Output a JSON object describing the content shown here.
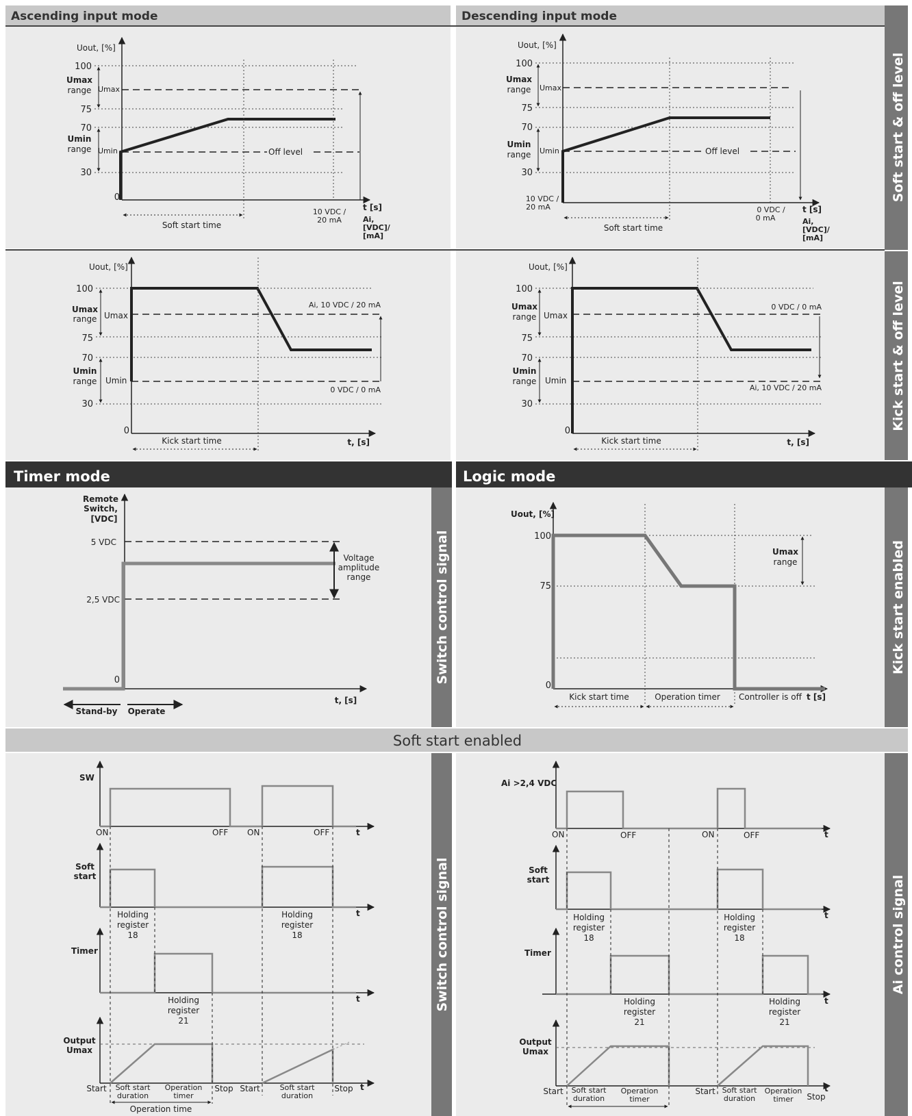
{
  "headers": {
    "ascending": "Ascending input mode",
    "descending": "Descending input mode",
    "timer": "Timer mode",
    "logic": "Logic mode",
    "soft_enabled": "Soft start enabled"
  },
  "side_labels": {
    "soft_off": "Soft start & off level",
    "kick_off": "Kick start & off level",
    "switch_1": "Switch control signal",
    "kick_enabled": "Kick start enabled",
    "switch_2": "Switch control signal",
    "ai_signal": "Ai control signal"
  },
  "soft_start": {
    "y_axis": "Uout, [%]",
    "ticks": [
      "100",
      "75",
      "70",
      "30",
      "0"
    ],
    "umax_range": [
      "Umax",
      "range"
    ],
    "umin_range": [
      "Umin",
      "range"
    ],
    "umax": "Umax",
    "umin": "Umin",
    "off_level": "Off level",
    "soft_start_time": "Soft start time",
    "t_axis": "t [s]",
    "ai_axis": [
      "Ai,",
      "[VDC]/",
      "[mA]"
    ],
    "asc_end": [
      "10 VDC /",
      "20 mA"
    ],
    "desc_start": [
      "10 VDC /",
      "20 mA"
    ],
    "desc_end": [
      "0 VDC /",
      "0 mA"
    ]
  },
  "kick_start": {
    "y_axis": "Uout, [%]",
    "ticks": [
      "100",
      "75",
      "70",
      "30",
      "0"
    ],
    "umax_range": [
      "Umax",
      "range"
    ],
    "umin_range": [
      "Umin",
      "range"
    ],
    "umax": "Umax",
    "umin": "Umin",
    "kick_start_time": "Kick start time",
    "t_axis": "t, [s]",
    "asc_top": "Ai, 10 VDC / 20 mA",
    "asc_bottom": "0 VDC / 0 mA",
    "desc_top": "0 VDC / 0 mA",
    "desc_bottom": "Ai, 10 VDC / 20 mA"
  },
  "timer_mode": {
    "y_axis": [
      "Remote",
      "Switch,",
      "[VDC]"
    ],
    "v5": "5 VDC",
    "v25": "2,5 VDC",
    "zero": "0",
    "voltage_range": [
      "Voltage",
      "amplitude",
      "range"
    ],
    "t_axis": "t, [s]",
    "standby": "Stand-by",
    "operate": "Operate"
  },
  "logic_mode": {
    "y_axis": "Uout, [%]",
    "t100": "100",
    "t75": "75",
    "t0": "0",
    "umax_range": [
      "Umax",
      "range"
    ],
    "kick_start_time": "Kick start time",
    "operation_timer": "Operation timer",
    "controller_off": "Controller is off",
    "t_axis": "t [s]"
  },
  "soft_enabled_left": {
    "sw": "SW",
    "soft_start": [
      "Soft",
      "start"
    ],
    "timer": "Timer",
    "output": [
      "Output",
      "Umax"
    ],
    "on": "ON",
    "off": "OFF",
    "t": "t",
    "hr18": [
      "Holding",
      "register",
      "18"
    ],
    "hr21": [
      "Holding",
      "register",
      "21"
    ],
    "start": "Start",
    "stop": "Stop",
    "ss_duration": [
      "Soft start",
      "duration"
    ],
    "op_timer": [
      "Operation",
      "timer"
    ],
    "op_time": "Operation time"
  },
  "soft_enabled_right": {
    "ai": "Ai >2,4 VDC",
    "soft_start": [
      "Soft",
      "start"
    ],
    "timer": "Timer",
    "output": [
      "Output",
      "Umax"
    ],
    "on": "ON",
    "off": "OFF",
    "t": "t",
    "hr18": [
      "Holding",
      "register",
      "18"
    ],
    "hr21": [
      "Holding",
      "register",
      "21"
    ],
    "start": "Start",
    "stop": "Stop",
    "ss_duration": [
      "Soft start",
      "duration"
    ],
    "op_timer": [
      "Operation",
      "timer"
    ]
  },
  "colors": {
    "panel": "#ebebeb",
    "header": "#c8c8c8",
    "dark_header": "#333333",
    "side_bar": "#777777",
    "line": "#222222",
    "signal": "#888888"
  }
}
